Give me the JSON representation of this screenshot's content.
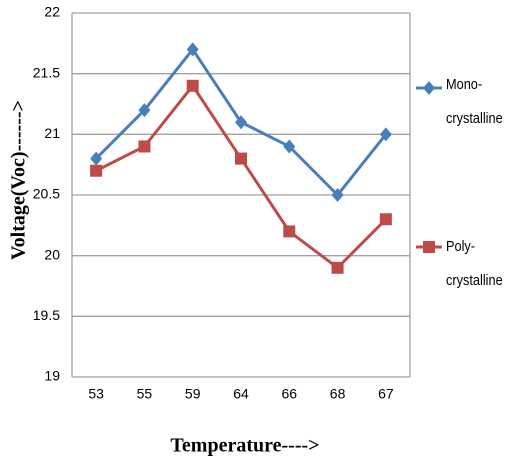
{
  "chart_data": {
    "type": "line",
    "x_label": "Temperature---->",
    "y_label": "Voltage(Voc)------>",
    "categories": [
      "53",
      "55",
      "59",
      "64",
      "66",
      "68",
      "67"
    ],
    "series": [
      {
        "name": "Mono-crystalline",
        "color": "#4a7ebb",
        "marker": "diamond",
        "values": [
          20.8,
          21.2,
          21.7,
          21.1,
          20.9,
          20.5,
          21.0
        ]
      },
      {
        "name": "Poly-crystalline",
        "color": "#be4b48",
        "marker": "square",
        "values": [
          20.7,
          20.9,
          21.4,
          20.8,
          20.2,
          19.9,
          20.3
        ]
      }
    ],
    "ylim": [
      19,
      22
    ],
    "yticks": [
      19,
      19.5,
      20,
      20.5,
      21,
      21.5,
      22
    ],
    "grid": true,
    "legend": "right"
  }
}
